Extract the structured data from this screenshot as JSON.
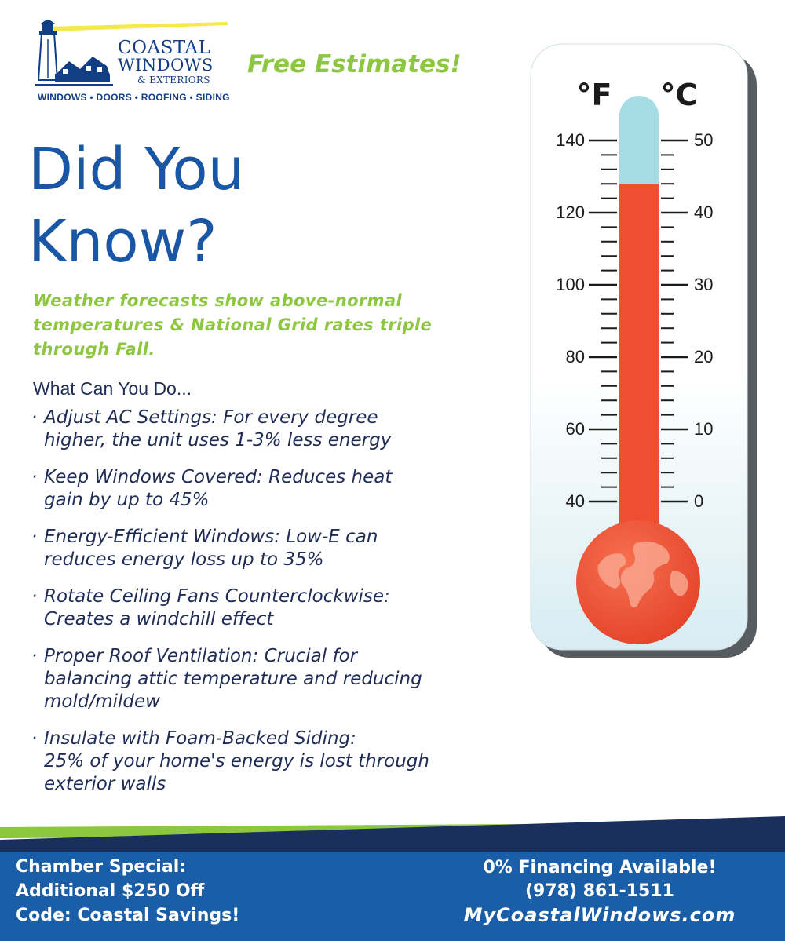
{
  "logo": {
    "line1": "COASTAL",
    "line2": "WINDOWS",
    "line3": "& EXTERIORS",
    "tagline": "WINDOWS • DOORS • ROOFING • SIDING",
    "icon": "lighthouse-house-icon"
  },
  "badge": "Free Estimates!",
  "headline": {
    "line1": "Did You",
    "line2": "Know?"
  },
  "subtitle": "Weather forecasts show above-normal temperatures & National Grid rates triple through Fall.",
  "what_heading": "What Can You Do...",
  "tips": [
    {
      "line1": "Adjust AC Settings: For every degree",
      "line2": "higher, the unit uses 1-3% less energy",
      "line3": ""
    },
    {
      "line1": "Keep Windows Covered: Reduces heat",
      "line2": "gain by up to 45%",
      "line3": ""
    },
    {
      "line1": "Energy-Efficient Windows: Low-E can",
      "line2": "reduces energy loss up to 35%",
      "line3": ""
    },
    {
      "line1": "Rotate Ceiling Fans Counterclockwise:",
      "line2": "Creates a windchill effect",
      "line3": ""
    },
    {
      "line1": "Proper Roof Ventilation: Crucial for",
      "line2": "balancing attic temperature and reducing",
      "line3": "mold/mildew"
    },
    {
      "line1": "Insulate with Foam-Backed Siding:",
      "line2": "25% of your home's energy is lost through",
      "line3": "exterior walls"
    }
  ],
  "tip_bullet": "·",
  "thermometer": {
    "unit_f": "°F",
    "unit_c": "°C",
    "f_labels": [
      "140",
      "120",
      "100",
      "80",
      "60",
      "40"
    ],
    "c_labels": [
      "50",
      "40",
      "30",
      "20",
      "10",
      "0"
    ],
    "mercury_level_c": 45,
    "colors": {
      "mercury": "#ef4e32",
      "tube_top": "#a6dde5",
      "bulb": "#f05a3c",
      "frame_bg": "#eaf5f8"
    },
    "bulb_icon": "globe-icon"
  },
  "footer": {
    "left_line1": "Chamber Special:",
    "left_line2": "Additional $250 Off",
    "left_line3": "Code: Coastal Savings!",
    "right_line1": "0% Financing Available!",
    "right_line2": "(978) 861-1511",
    "right_line3": "MyCoastalWindows.com"
  },
  "colors": {
    "brand_blue": "#1a56a6",
    "accent_green": "#8dc63f",
    "navy": "#1f2c56",
    "footer_blue": "#1a5ea8"
  }
}
